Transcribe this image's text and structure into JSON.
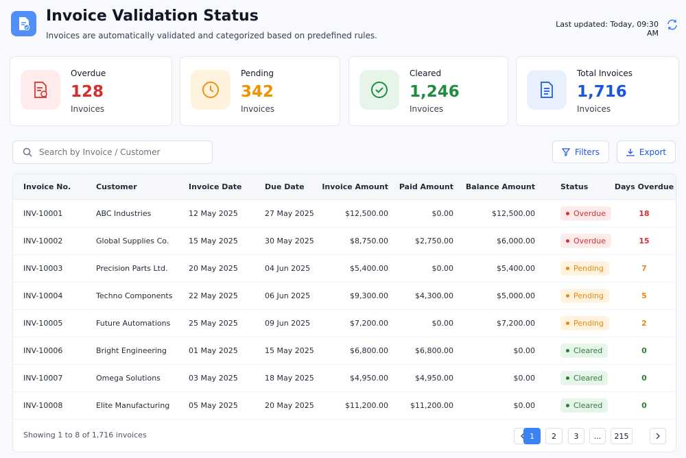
{
  "header": {
    "title": "Invoice Validation Status",
    "subtitle": "Invoices are automatically validated and categorized based on predefined rules.",
    "last_updated": "Last updated: Today, 09:30 AM"
  },
  "cards": [
    {
      "label": "Overdue",
      "value": "128",
      "unit": "Invoices"
    },
    {
      "label": "Pending",
      "value": "342",
      "unit": "Invoices"
    },
    {
      "label": "Cleared",
      "value": "1,246",
      "unit": "Invoices"
    },
    {
      "label": "Total Invoices",
      "value": "1,716",
      "unit": "Invoices"
    }
  ],
  "toolbar": {
    "search_placeholder": "Search by Invoice / Customer",
    "filters": "Filters",
    "export": "Export"
  },
  "table": {
    "columns": [
      "Invoice No.",
      "Customer",
      "Invoice Date",
      "Due Date",
      "Invoice Amount",
      "Paid Amount",
      "Balance Amount",
      "Status",
      "Days Overdue"
    ],
    "rows": [
      [
        "INV-10001",
        "ABC Industries",
        "12 May 2025",
        "27 May 2025",
        "$12,500.00",
        "$0.00",
        "$12,500.00",
        "Overdue",
        "18"
      ],
      [
        "INV-10002",
        "Global Supplies Co.",
        "15 May 2025",
        "30 May 2025",
        "$8,750.00",
        "$2,750.00",
        "$6,000.00",
        "Overdue",
        "15"
      ],
      [
        "INV-10003",
        "Precision Parts Ltd.",
        "20 May 2025",
        "04 Jun 2025",
        "$5,400.00",
        "$0.00",
        "$5,400.00",
        "Pending",
        "7"
      ],
      [
        "INV-10004",
        "Techno Components",
        "22 May 2025",
        "06 Jun 2025",
        "$9,300.00",
        "$4,300.00",
        "$5,000.00",
        "Pending",
        "5"
      ],
      [
        "INV-10005",
        "Future Automations",
        "25 May 2025",
        "09 Jun 2025",
        "$7,200.00",
        "$0.00",
        "$7,200.00",
        "Pending",
        "2"
      ],
      [
        "INV-10006",
        "Bright Engineering",
        "01 May 2025",
        "15 May 2025",
        "$6,800.00",
        "$6,800.00",
        "$0.00",
        "Cleared",
        "0"
      ],
      [
        "INV-10007",
        "Omega Solutions",
        "03 May 2025",
        "18 May 2025",
        "$4,950.00",
        "$4,950.00",
        "$0.00",
        "Cleared",
        "0"
      ],
      [
        "INV-10008",
        "Elite Manufacturing",
        "05 May 2025",
        "20 May 2025",
        "$11,200.00",
        "$11,200.00",
        "$0.00",
        "Cleared",
        "0"
      ]
    ]
  },
  "footer": {
    "summary": "Showing 1 to 8 of 1,716 invoices",
    "pages": [
      "1",
      "2",
      "3",
      "...",
      "215"
    ]
  }
}
